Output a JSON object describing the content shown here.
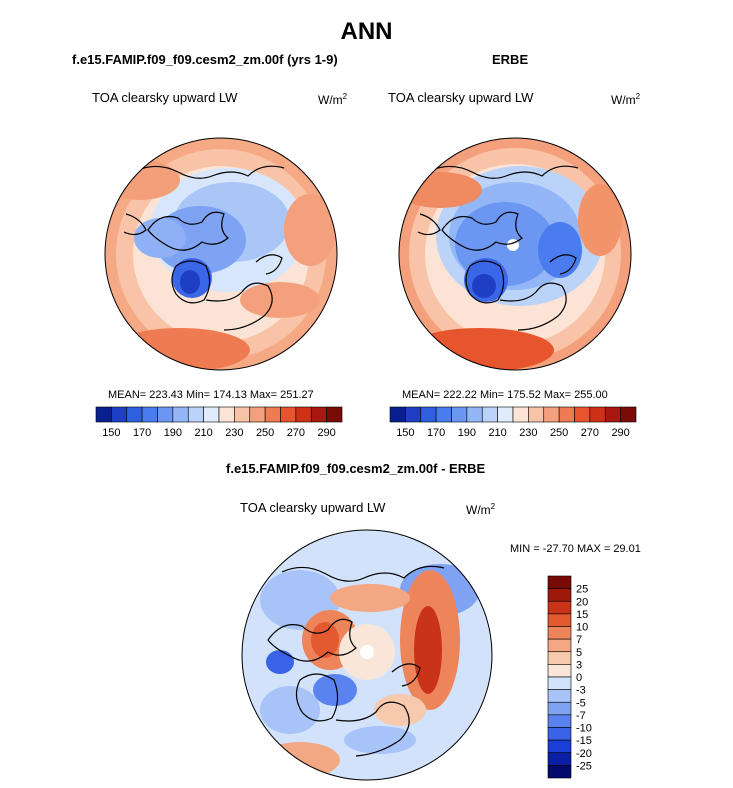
{
  "page": {
    "title": "ANN"
  },
  "panels": {
    "model": {
      "case_title": "f.e15.FAMIP.f09_f09.cesm2_zm.00f (yrs 1-9)",
      "variable": "TOA clearsky upward LW",
      "units_base": "W/m",
      "units_exp": "2",
      "stats": "MEAN= 223.43  Min= 174.13  Max= 251.27"
    },
    "obs": {
      "case_title": "ERBE",
      "variable": "TOA clearsky upward LW",
      "units_base": "W/m",
      "units_exp": "2",
      "stats": "MEAN= 222.22  Min= 175.52  Max= 255.00"
    },
    "diff": {
      "case_title": "f.e15.FAMIP.f09_f09.cesm2_zm.00f - ERBE",
      "variable": "TOA clearsky upward LW",
      "units_base": "W/m",
      "units_exp": "2",
      "stats": "MIN = -27.70 MAX =  29.01"
    }
  },
  "chart_data": [
    {
      "type": "heatmap",
      "projection": "north-polar-stereographic",
      "title": "f.e15.FAMIP.f09_f09.cesm2_zm.00f (yrs 1-9)",
      "variable": "TOA clearsky upward LW",
      "units": "W/m2",
      "mean": 223.43,
      "min": 174.13,
      "max": 251.27,
      "levels": [
        150,
        160,
        170,
        180,
        190,
        200,
        210,
        220,
        230,
        240,
        250,
        260,
        270,
        280,
        290
      ],
      "colorbar_labels": [
        "150",
        "170",
        "190",
        "210",
        "230",
        "250",
        "270",
        "290"
      ],
      "colors": [
        "#0a1f8f",
        "#1e3fc4",
        "#2e5fdf",
        "#4a7cef",
        "#6b97f3",
        "#93b6f6",
        "#bcd3f9",
        "#e0ecfb",
        "#fbe4d6",
        "#f8c4a8",
        "#f4a07c",
        "#ef7b52",
        "#e6552e",
        "#cf3018",
        "#a81810",
        "#7a0c08"
      ]
    },
    {
      "type": "heatmap",
      "projection": "north-polar-stereographic",
      "title": "ERBE",
      "variable": "TOA clearsky upward LW",
      "units": "W/m2",
      "mean": 222.22,
      "min": 175.52,
      "max": 255.0,
      "levels": [
        150,
        160,
        170,
        180,
        190,
        200,
        210,
        220,
        230,
        240,
        250,
        260,
        270,
        280,
        290
      ],
      "colorbar_labels": [
        "150",
        "170",
        "190",
        "210",
        "230",
        "250",
        "270",
        "290"
      ]
    },
    {
      "type": "heatmap",
      "projection": "north-polar-stereographic",
      "title": "f.e15.FAMIP.f09_f09.cesm2_zm.00f - ERBE",
      "variable": "TOA clearsky upward LW",
      "units": "W/m2",
      "min": -27.7,
      "max": 29.01,
      "levels": [
        -25,
        -20,
        -15,
        -10,
        -7,
        -5,
        -3,
        0,
        3,
        5,
        7,
        10,
        15,
        20,
        25
      ],
      "colorbar_labels": [
        "25",
        "20",
        "15",
        "10",
        "7",
        "5",
        "3",
        "0",
        "-3",
        "-5",
        "-7",
        "-10",
        "-15",
        "-20",
        "-25"
      ],
      "colors": [
        "#030a6e",
        "#0a1fa8",
        "#1a3fd6",
        "#3a63ea",
        "#5a83f0",
        "#7fa2f3",
        "#a8c3f7",
        "#d2e2fa",
        "#fae6d8",
        "#f7c9ad",
        "#f3a883",
        "#ee845a",
        "#e35a30",
        "#c93318",
        "#a0180c",
        "#7a0a06"
      ]
    }
  ]
}
